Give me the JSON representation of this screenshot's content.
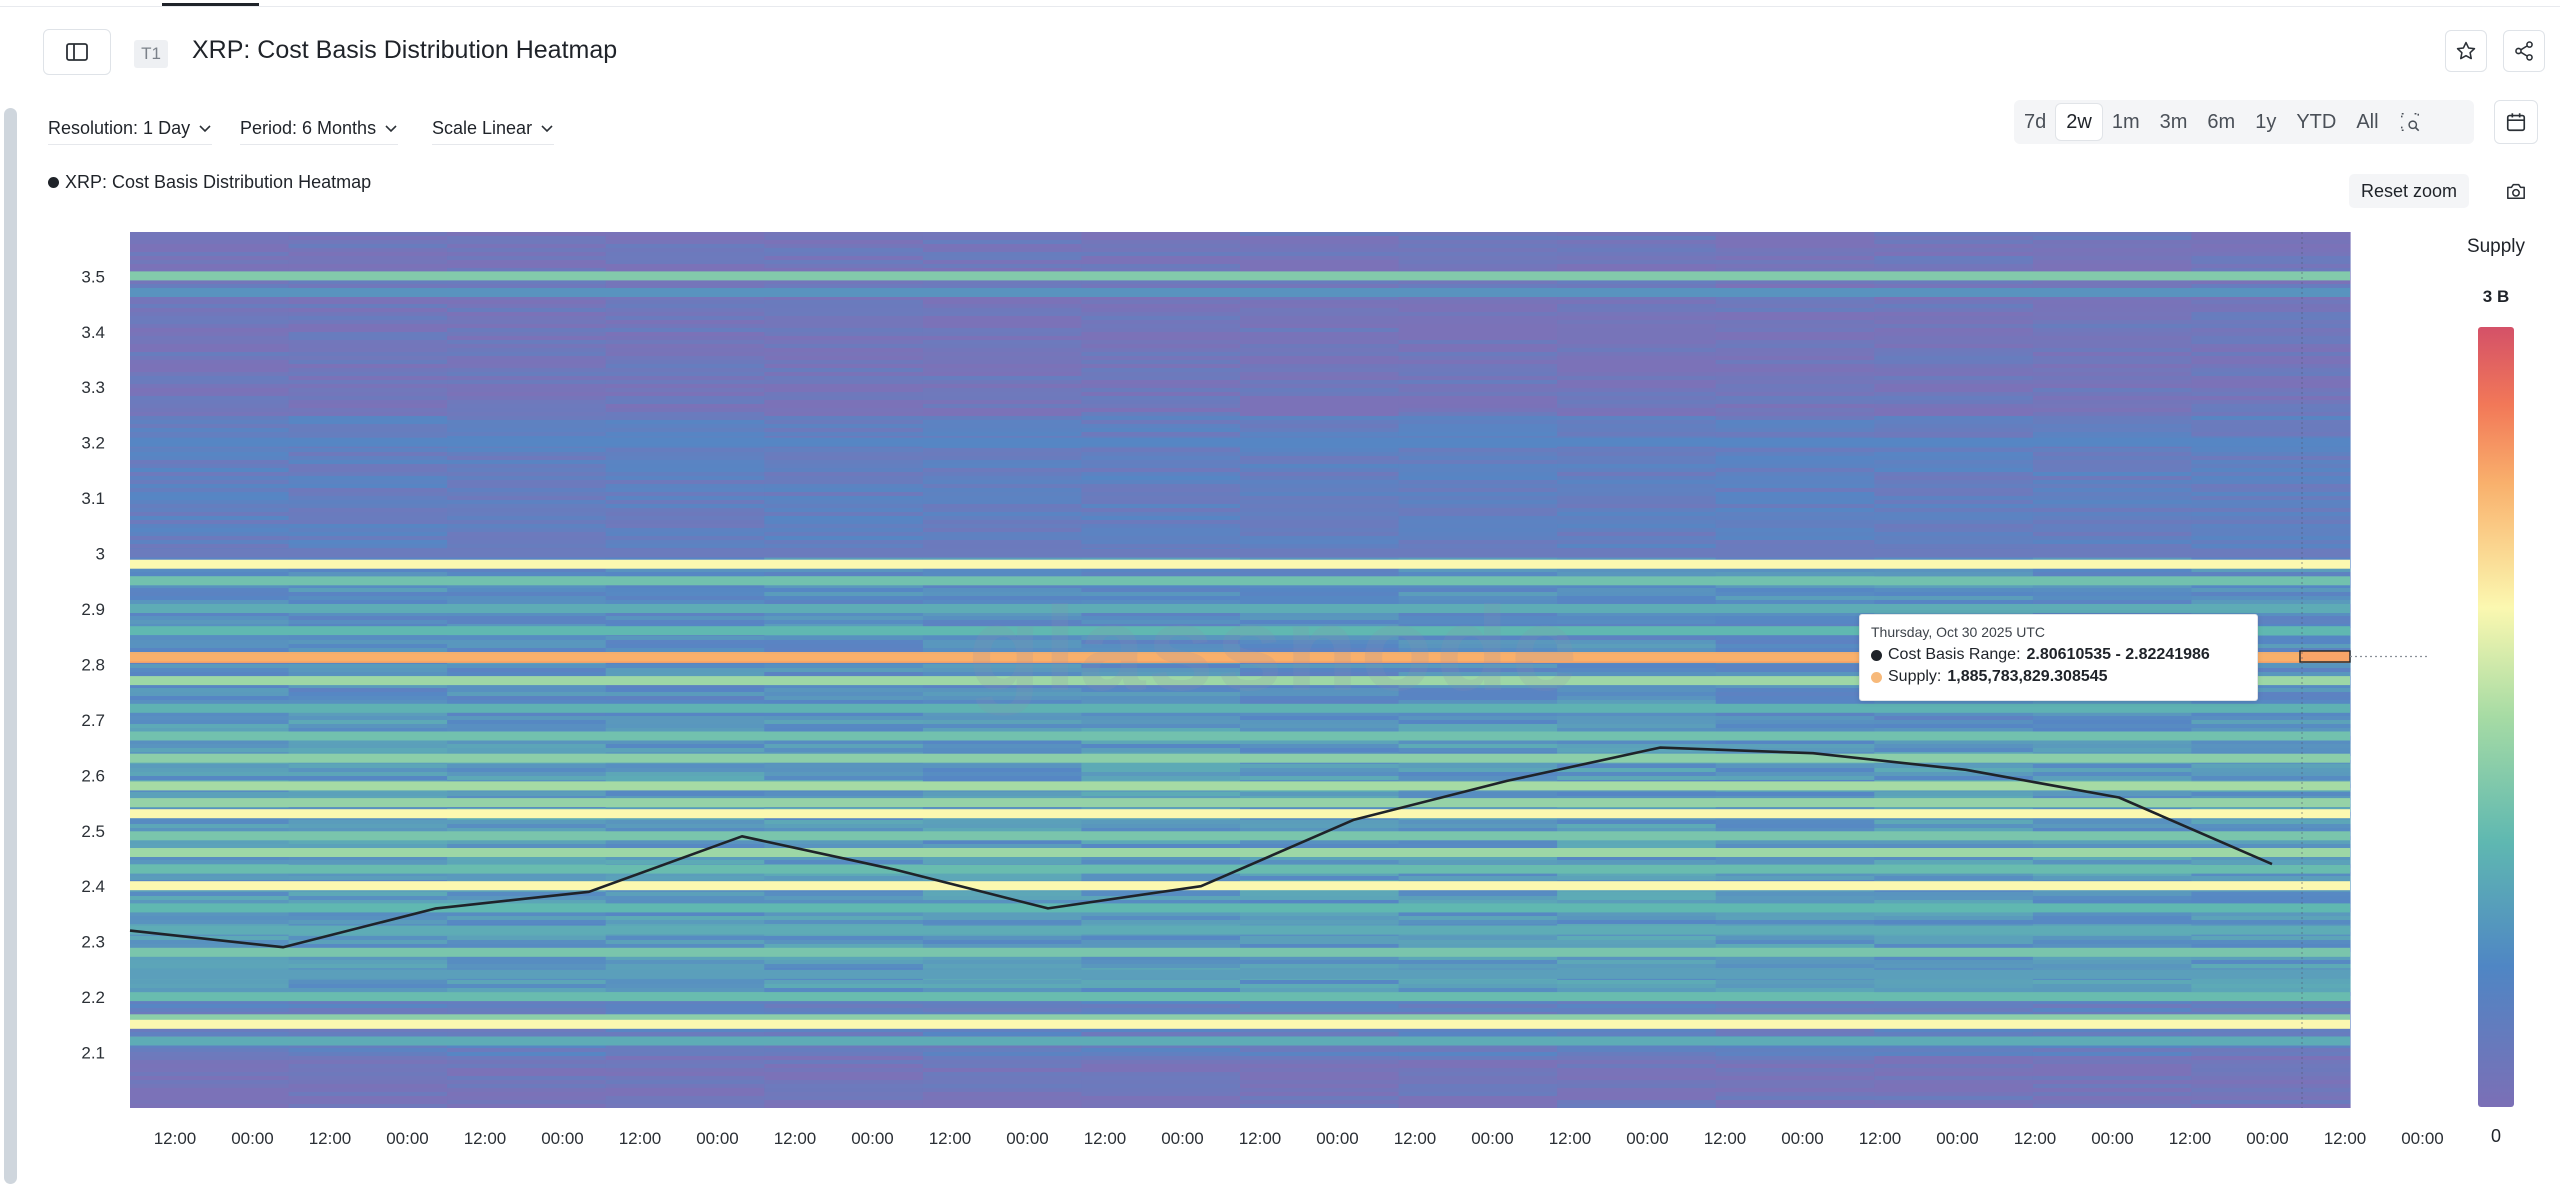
{
  "header": {
    "badge": "T1",
    "title": "XRP: Cost Basis Distribution Heatmap"
  },
  "icons": {
    "sidebar_toggle": "sidebar-toggle-icon",
    "favorite": "star-icon",
    "share": "share-icon",
    "calendar": "calendar-icon",
    "zoom_select": "zoom-select-icon",
    "camera": "camera-icon",
    "chevron": "chevron-down-icon"
  },
  "toolbar": {
    "resolution": "Resolution: 1 Day",
    "period": "Period: 6 Months",
    "scale": "Scale Linear"
  },
  "ranges": [
    "7d",
    "2w",
    "1m",
    "3m",
    "6m",
    "1y",
    "YTD",
    "All"
  ],
  "active_range": "2w",
  "legend": {
    "label": "XRP: Cost Basis Distribution Heatmap"
  },
  "reset_zoom": "Reset zoom",
  "watermark": "glassnode",
  "tooltip": {
    "date": "Thursday, Oct 30 2025 UTC",
    "range_label": "Cost Basis Range:",
    "range_value": "2.80610535 - 2.82241986",
    "supply_label": "Supply:",
    "supply_value": "1,885,783,829.308545"
  },
  "colorbar": {
    "title": "Supply",
    "max_label": "3 B",
    "min_label": "0"
  },
  "colors": {
    "price_line": "#1f2329",
    "highlight": "#f7b97a",
    "heat_low": "#7b72b8",
    "heat_high": "#d45168"
  },
  "chart_data": {
    "type": "heatmap",
    "title": "XRP: Cost Basis Distribution Heatmap",
    "y_axis": {
      "ticks": [
        "2.1",
        "2.2",
        "2.3",
        "2.4",
        "2.5",
        "2.6",
        "2.7",
        "2.8",
        "2.9",
        "3",
        "3.1",
        "3.2",
        "3.3",
        "3.4",
        "3.5"
      ],
      "range": [
        2.0,
        3.58
      ]
    },
    "x_axis": {
      "ticks": [
        "12:00",
        "00:00",
        "12:00",
        "00:00",
        "12:00",
        "00:00",
        "12:00",
        "00:00",
        "12:00",
        "00:00",
        "12:00",
        "00:00",
        "12:00",
        "00:00",
        "12:00",
        "00:00",
        "12:00",
        "00:00",
        "12:00",
        "00:00",
        "12:00",
        "00:00",
        "12:00",
        "00:00",
        "12:00",
        "00:00",
        "12:00",
        "00:00",
        "12:00",
        "00:00",
        "12:00",
        "00:00"
      ]
    },
    "legend_position": "top-left",
    "price_series": {
      "name": "XRP: Cost Basis Distribution Heatmap",
      "values": [
        2.32,
        2.29,
        2.36,
        2.39,
        2.49,
        2.43,
        2.36,
        2.4,
        2.52,
        2.59,
        2.65,
        2.64,
        2.61,
        2.56,
        2.44
      ]
    },
    "supply_bands": [
      {
        "price": 3.5,
        "intensity": 0.42
      },
      {
        "price": 3.47,
        "intensity": 0.22
      },
      {
        "price": 3.2,
        "intensity": 0.18
      },
      {
        "price": 3.0,
        "intensity": 0.08
      },
      {
        "price": 2.98,
        "intensity": 0.64
      },
      {
        "price": 2.95,
        "intensity": 0.38
      },
      {
        "price": 2.9,
        "intensity": 0.3
      },
      {
        "price": 2.86,
        "intensity": 0.34
      },
      {
        "price": 2.81,
        "intensity": 0.82
      },
      {
        "price": 2.77,
        "intensity": 0.48
      },
      {
        "price": 2.72,
        "intensity": 0.32
      },
      {
        "price": 2.67,
        "intensity": 0.38
      },
      {
        "price": 2.63,
        "intensity": 0.44
      },
      {
        "price": 2.58,
        "intensity": 0.5
      },
      {
        "price": 2.55,
        "intensity": 0.46
      },
      {
        "price": 2.53,
        "intensity": 0.64
      },
      {
        "price": 2.49,
        "intensity": 0.4
      },
      {
        "price": 2.46,
        "intensity": 0.48
      },
      {
        "price": 2.43,
        "intensity": 0.36
      },
      {
        "price": 2.4,
        "intensity": 0.64
      },
      {
        "price": 2.36,
        "intensity": 0.34
      },
      {
        "price": 2.32,
        "intensity": 0.3
      },
      {
        "price": 2.28,
        "intensity": 0.4
      },
      {
        "price": 2.24,
        "intensity": 0.26
      },
      {
        "price": 2.2,
        "intensity": 0.36
      },
      {
        "price": 2.16,
        "intensity": 0.44
      },
      {
        "price": 2.15,
        "intensity": 0.64
      },
      {
        "price": 2.12,
        "intensity": 0.3
      }
    ],
    "highlight_band": {
      "low": 2.80610535,
      "high": 2.82241986,
      "supply": 1885783829.308545
    },
    "colorbar_range": [
      0,
      3000000000
    ]
  }
}
